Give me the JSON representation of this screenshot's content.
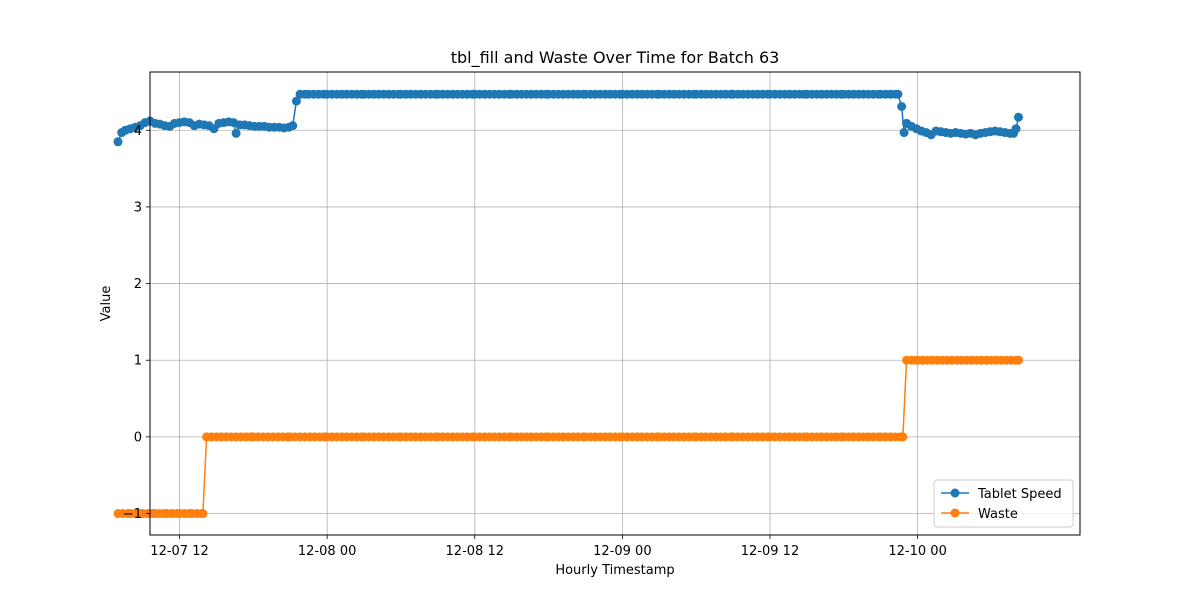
{
  "chart_data": {
    "type": "line",
    "title": "tbl_fill and Waste Over Time for Batch 63",
    "xlabel": "Hourly Timestamp",
    "ylabel": "Value",
    "x_tick_labels": [
      "12-07 12",
      "12-08 00",
      "12-08 12",
      "12-09 00",
      "12-09 12",
      "12-10 00"
    ],
    "x_tick_hours": [
      12,
      24,
      36,
      48,
      60,
      72
    ],
    "y_ticks": [
      -1,
      0,
      1,
      2,
      3,
      4
    ],
    "y_tick_labels": [
      "−1",
      "0",
      "1",
      "2",
      "3",
      "4"
    ],
    "xlim_hours": [
      9.6,
      85.2
    ],
    "ylim": [
      -1.28,
      4.76
    ],
    "grid": true,
    "legend_position": "lower-right",
    "series": [
      {
        "name": "Tablet Speed",
        "color": "#1f77b4",
        "marker": "circle",
        "points": [
          [
            7.0,
            3.85
          ],
          [
            7.3,
            3.97
          ],
          [
            7.6,
            4.0
          ],
          [
            8.0,
            4.02
          ],
          [
            8.4,
            4.04
          ],
          [
            8.8,
            4.06
          ],
          [
            9.2,
            4.1
          ],
          [
            9.6,
            4.12
          ],
          [
            10.0,
            4.09
          ],
          [
            10.4,
            4.08
          ],
          [
            10.8,
            4.06
          ],
          [
            11.2,
            4.05
          ],
          [
            11.6,
            4.09
          ],
          [
            12.0,
            4.1
          ],
          [
            12.4,
            4.11
          ],
          [
            12.8,
            4.1
          ],
          [
            13.2,
            4.06
          ],
          [
            13.6,
            4.08
          ],
          [
            14.0,
            4.07
          ],
          [
            14.4,
            4.06
          ],
          [
            14.8,
            4.02
          ],
          [
            15.2,
            4.09
          ],
          [
            15.6,
            4.1
          ],
          [
            16.0,
            4.11
          ],
          [
            16.4,
            4.1
          ],
          [
            16.6,
            3.96
          ],
          [
            16.9,
            4.07
          ],
          [
            17.3,
            4.07
          ],
          [
            17.7,
            4.06
          ],
          [
            18.1,
            4.05
          ],
          [
            18.5,
            4.05
          ],
          [
            18.9,
            4.05
          ],
          [
            19.3,
            4.04
          ],
          [
            19.7,
            4.04
          ],
          [
            20.1,
            4.04
          ],
          [
            20.5,
            4.03
          ],
          [
            20.9,
            4.04
          ],
          [
            21.2,
            4.06
          ],
          [
            21.5,
            4.38
          ],
          [
            21.8,
            4.47
          ],
          [
            22.5,
            4.47
          ],
          [
            24.0,
            4.47
          ],
          [
            27.0,
            4.47
          ],
          [
            30.0,
            4.47
          ],
          [
            33.0,
            4.47
          ],
          [
            36.0,
            4.47
          ],
          [
            39.0,
            4.47
          ],
          [
            42.0,
            4.47
          ],
          [
            45.0,
            4.47
          ],
          [
            48.0,
            4.47
          ],
          [
            51.0,
            4.47
          ],
          [
            54.0,
            4.47
          ],
          [
            57.0,
            4.47
          ],
          [
            60.0,
            4.47
          ],
          [
            63.0,
            4.47
          ],
          [
            66.0,
            4.47
          ],
          [
            69.0,
            4.47
          ],
          [
            70.4,
            4.47
          ],
          [
            70.7,
            4.31
          ],
          [
            70.9,
            3.97
          ],
          [
            71.1,
            4.09
          ],
          [
            71.5,
            4.05
          ],
          [
            71.9,
            4.02
          ],
          [
            72.3,
            3.99
          ],
          [
            72.7,
            3.97
          ],
          [
            73.1,
            3.94
          ],
          [
            73.5,
            3.99
          ],
          [
            73.9,
            3.98
          ],
          [
            74.3,
            3.97
          ],
          [
            74.7,
            3.96
          ],
          [
            75.1,
            3.97
          ],
          [
            75.5,
            3.96
          ],
          [
            75.9,
            3.95
          ],
          [
            76.3,
            3.96
          ],
          [
            76.7,
            3.94
          ],
          [
            77.1,
            3.96
          ],
          [
            77.5,
            3.97
          ],
          [
            77.9,
            3.98
          ],
          [
            78.3,
            3.99
          ],
          [
            78.7,
            3.98
          ],
          [
            79.1,
            3.97
          ],
          [
            79.5,
            3.96
          ],
          [
            79.8,
            3.96
          ],
          [
            80.0,
            4.02
          ],
          [
            80.2,
            4.17
          ]
        ]
      },
      {
        "name": "Waste",
        "color": "#ff7f0e",
        "marker": "circle",
        "points": [
          [
            7.0,
            -1
          ],
          [
            8.0,
            -1
          ],
          [
            9.0,
            -1
          ],
          [
            10.0,
            -1
          ],
          [
            11.0,
            -1
          ],
          [
            12.0,
            -1
          ],
          [
            13.0,
            -1
          ],
          [
            13.9,
            -1
          ],
          [
            14.2,
            0
          ],
          [
            15.0,
            0
          ],
          [
            18.0,
            0
          ],
          [
            21.0,
            0
          ],
          [
            24.0,
            0
          ],
          [
            27.0,
            0
          ],
          [
            30.0,
            0
          ],
          [
            33.0,
            0
          ],
          [
            36.0,
            0
          ],
          [
            39.0,
            0
          ],
          [
            42.0,
            0
          ],
          [
            45.0,
            0
          ],
          [
            48.0,
            0
          ],
          [
            51.0,
            0
          ],
          [
            54.0,
            0
          ],
          [
            57.0,
            0
          ],
          [
            60.0,
            0
          ],
          [
            63.0,
            0
          ],
          [
            66.0,
            0
          ],
          [
            69.0,
            0
          ],
          [
            70.8,
            0
          ],
          [
            71.1,
            1
          ],
          [
            72.0,
            1
          ],
          [
            74.0,
            1
          ],
          [
            76.0,
            1
          ],
          [
            78.0,
            1
          ],
          [
            80.2,
            1
          ]
        ]
      }
    ]
  }
}
